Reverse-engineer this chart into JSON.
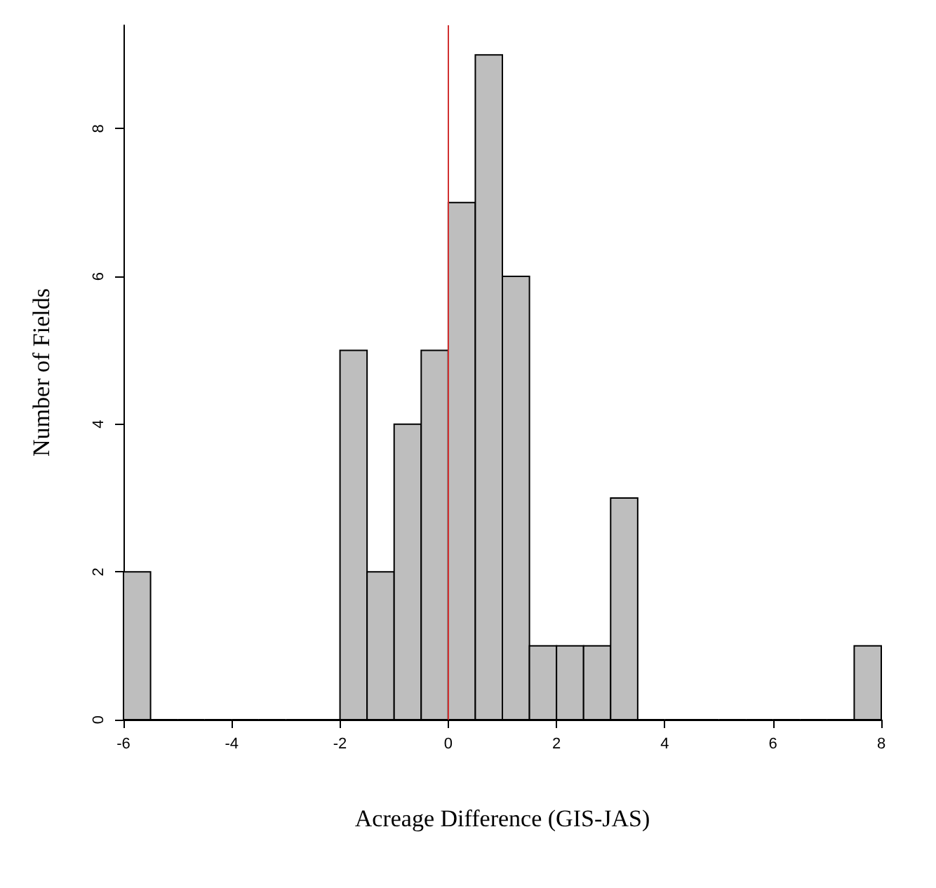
{
  "chart_data": {
    "type": "histogram",
    "xlabel": "Acreage Difference (GIS-JAS)",
    "ylabel": "Number of Fields",
    "bins": [
      -6,
      -5.5,
      -5,
      -4.5,
      -4,
      -3.5,
      -3,
      -2.5,
      -2,
      -1.5,
      -1,
      -0.5,
      0,
      0.5,
      1,
      1.5,
      2,
      2.5,
      3,
      3.5,
      4,
      4.5,
      5,
      5.5,
      6,
      6.5,
      7,
      7.5,
      8
    ],
    "values": [
      2,
      0,
      0,
      0,
      0,
      0,
      0,
      0,
      5,
      2,
      4,
      5,
      7,
      9,
      6,
      1,
      1,
      1,
      3,
      0,
      0,
      0,
      0,
      0,
      0,
      0,
      0,
      1
    ],
    "color": "#bebebe",
    "xlim": [
      -6,
      8
    ],
    "xticks": [
      -6,
      -4,
      -2,
      0,
      2,
      4,
      6,
      8
    ],
    "ylim": [
      0,
      9.4
    ],
    "yticks": [
      0,
      2,
      4,
      6,
      8
    ],
    "ref_lines": [
      {
        "axis": "x",
        "value": 0,
        "color": "#d03030"
      }
    ],
    "grid": false
  }
}
